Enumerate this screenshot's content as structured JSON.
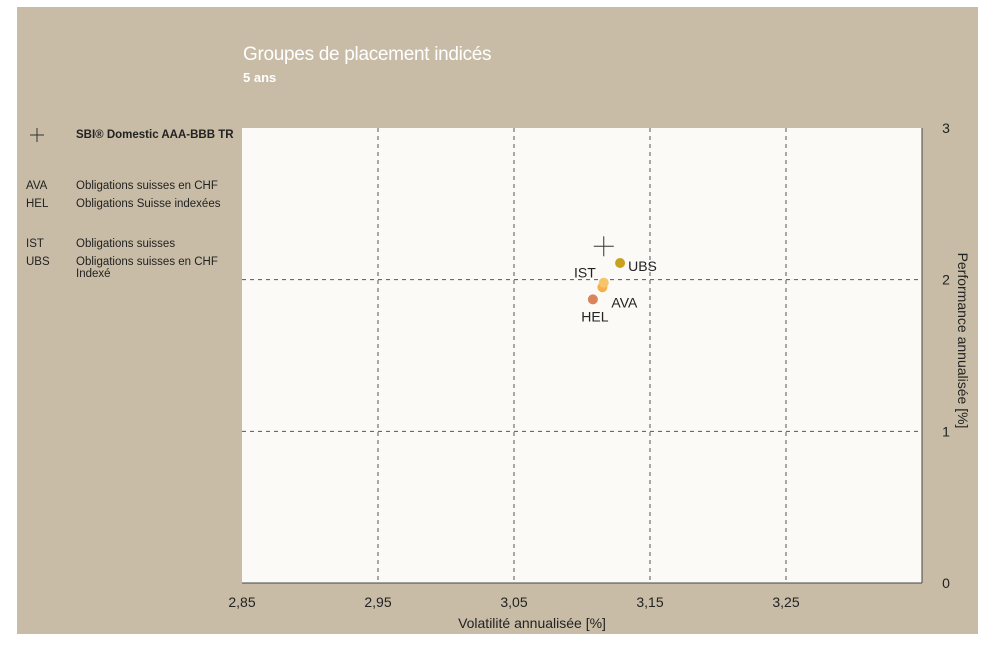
{
  "header": {
    "title": "Groupes de placement indicés",
    "subtitle": "5 ans"
  },
  "legend": {
    "benchmark": {
      "code": "+",
      "label": "SBI® Domestic AAA-BBB TR",
      "icon": "plus-icon"
    },
    "items": [
      {
        "code": "AVA",
        "label": "Obligations suisses en CHF"
      },
      {
        "code": "HEL",
        "label": "Obligations Suisse indexées"
      },
      {
        "code": "IST",
        "label": "Obligations suisses"
      },
      {
        "code": "UBS",
        "label": "Obligations suisses en CHF Indexé"
      }
    ]
  },
  "colors": {
    "background": "#c8bca6",
    "plot_area": "#fbfaf6",
    "AVA": "#f5b04a",
    "HEL": "#d9845a",
    "IST": "#f8c46a",
    "UBS": "#c8a21e",
    "benchmark": "#333333"
  },
  "chart_data": {
    "type": "scatter",
    "xlabel": "Volatilité annualisée [%]",
    "ylabel": "Performance annualisée [%]",
    "xlim": [
      2.85,
      3.35
    ],
    "ylim": [
      0,
      3
    ],
    "x_ticks": [
      "2,85",
      "2,95",
      "3,05",
      "3,15",
      "3,25"
    ],
    "y_ticks": [
      "0",
      "1",
      "2",
      "3"
    ],
    "y_axis_side": "right",
    "grid": true,
    "grid_style": "dashed",
    "legend_position": "left",
    "points": [
      {
        "name": "AVA",
        "label": "AVA",
        "x": 3.115,
        "y": 1.95
      },
      {
        "name": "HEL",
        "label": "HEL",
        "x": 3.108,
        "y": 1.87
      },
      {
        "name": "IST",
        "label": "IST",
        "x": 3.116,
        "y": 1.98
      },
      {
        "name": "UBS",
        "label": "UBS",
        "x": 3.128,
        "y": 2.11
      }
    ],
    "benchmark": {
      "name": "SBI® Domestic AAA-BBB TR",
      "marker": "+",
      "x": 3.116,
      "y": 2.22
    }
  }
}
